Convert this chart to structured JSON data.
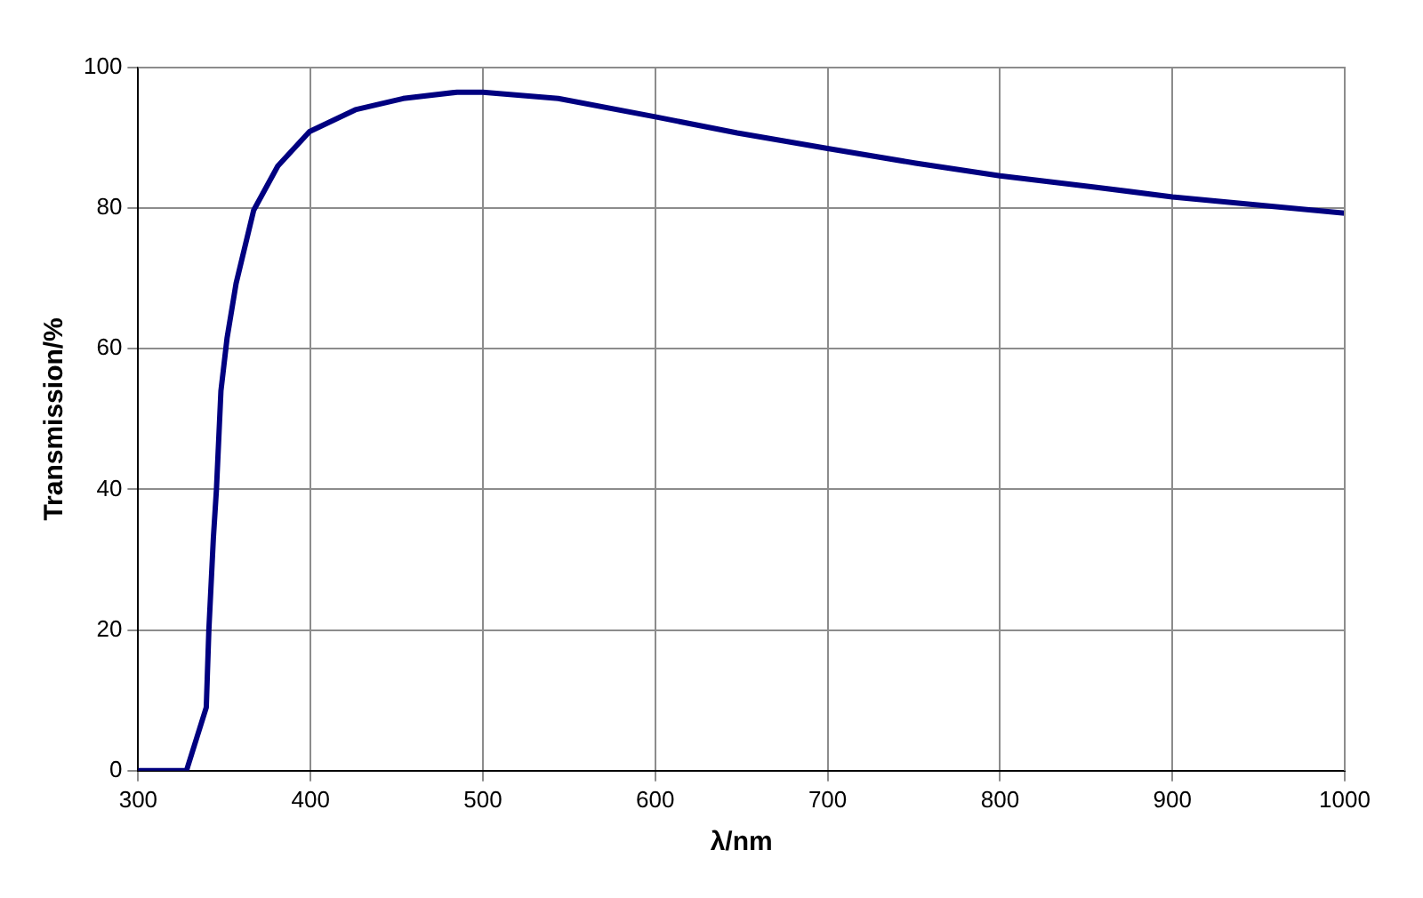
{
  "chart_data": {
    "type": "line",
    "xlabel": "λ/nm",
    "ylabel": "Transmission/%",
    "series": [
      {
        "color": "#000080",
        "x": [
          300,
          320,
          328,
          339.5,
          341,
          343.6,
          345.4,
          348,
          351.6,
          356.8,
          367,
          381,
          399.4,
          426,
          453.7,
          485,
          500,
          543.7,
          600,
          647.5,
          700,
          751,
          800,
          855,
          900,
          952,
          1000
        ],
        "values": [
          0,
          0,
          0,
          9,
          20,
          33,
          40,
          54,
          61.6,
          69.3,
          79.7,
          86,
          90.9,
          94,
          95.6,
          96.5,
          96.5,
          95.6,
          93,
          90.7,
          88.5,
          86.4,
          84.6,
          83,
          81.6,
          80.4,
          79.3
        ]
      }
    ],
    "xlim": [
      300,
      1000
    ],
    "xticks": [
      300,
      400,
      500,
      600,
      700,
      800,
      900,
      1000
    ],
    "ylim": [
      0,
      100
    ],
    "yticks": [
      0,
      20,
      40,
      60,
      80,
      100
    ],
    "grid": true,
    "legend": false,
    "marker": "none",
    "line_style": "solid"
  }
}
